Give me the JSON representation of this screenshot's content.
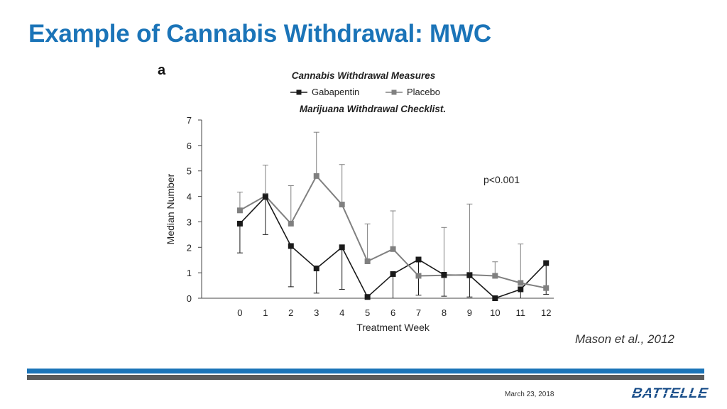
{
  "slide": {
    "title": "Example of Cannabis Withdrawal: MWC",
    "panel_letter": "a",
    "citation": "Mason et al., 2012",
    "footer_date": "March 23, 2018",
    "logo_text": "BATTELLE"
  },
  "colors": {
    "title": "#1b74b8",
    "gabapentin": "#1a1a1a",
    "placebo": "#808080",
    "footer_blue": "#1b74b8",
    "footer_gray": "#5a5a5a"
  },
  "chart_data": {
    "type": "line",
    "title": "Cannabis Withdrawal Measures",
    "subtitle": "Marijuana Withdrawal Checklist.",
    "xlabel": "Treatment Week",
    "ylabel": "Median Number",
    "x": [
      0,
      1,
      2,
      3,
      4,
      5,
      6,
      7,
      8,
      9,
      10,
      11,
      12
    ],
    "x_tick_labels": [
      "0",
      "1",
      "2",
      "3",
      "4",
      "5",
      "6",
      "7",
      "8",
      "9",
      "10",
      "11",
      "12"
    ],
    "y_ticks": [
      0,
      1,
      2,
      3,
      4,
      5,
      6,
      7
    ],
    "ylim": [
      0,
      7
    ],
    "xlim": [
      -1.5,
      12.3
    ],
    "annotation": "p<0.001",
    "legend_position": "top",
    "series": [
      {
        "name": "Gabapentin",
        "color": "#1a1a1a",
        "values": [
          2.93,
          3.98,
          2.05,
          1.17,
          2.0,
          0.05,
          0.95,
          1.52,
          0.92,
          0.9,
          0.0,
          0.35,
          1.38
        ],
        "error_low": [
          1.78,
          2.5,
          0.45,
          0.2,
          0.35,
          0.0,
          0.0,
          0.12,
          0.08,
          0.05,
          0.0,
          0.0,
          0.15
        ],
        "error_high": [
          null,
          null,
          null,
          null,
          null,
          null,
          null,
          null,
          null,
          null,
          null,
          null,
          null
        ]
      },
      {
        "name": "Placebo",
        "color": "#808080",
        "values": [
          3.45,
          4.02,
          2.93,
          4.8,
          3.68,
          1.45,
          1.93,
          0.88,
          0.9,
          0.92,
          0.88,
          0.6,
          0.4
        ],
        "error_low": [
          null,
          null,
          null,
          null,
          null,
          null,
          null,
          null,
          null,
          null,
          null,
          null,
          null
        ],
        "error_high": [
          4.17,
          5.23,
          4.42,
          6.52,
          5.25,
          2.92,
          3.43,
          null,
          2.78,
          3.7,
          1.43,
          2.13,
          null
        ]
      }
    ]
  }
}
